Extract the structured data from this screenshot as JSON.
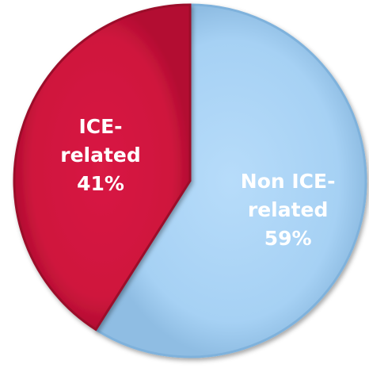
{
  "chart_data": {
    "type": "pie",
    "slices": [
      {
        "label_lines": [
          "Non ICE-",
          "related"
        ],
        "value": 59,
        "value_label": "59%",
        "color": "#a8d3f5"
      },
      {
        "label_lines": [
          "ICE-",
          "related"
        ],
        "value": 41,
        "value_label": "41%",
        "color": "#d3143e"
      }
    ],
    "start_at": "12 o'clock",
    "direction": "clockwise",
    "style": "3D beveled"
  }
}
